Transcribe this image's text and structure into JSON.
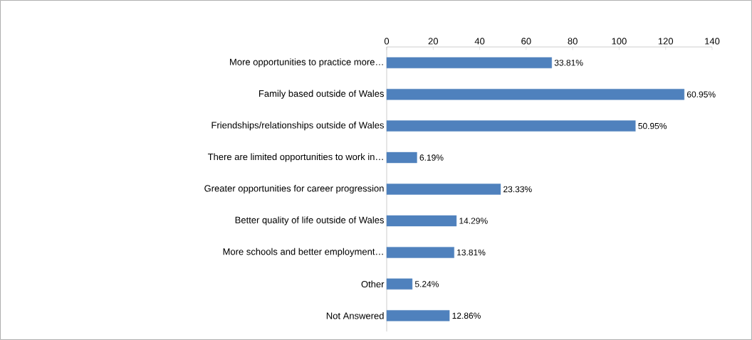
{
  "chart_data": {
    "type": "bar",
    "orientation": "horizontal",
    "categories": [
      "More opportunities to practice more…",
      "Family based outside of Wales",
      "Friendships/relationships outside of Wales",
      "There are limited opportunities to work in…",
      "Greater opportunities for career progression",
      "Better quality of life outside of Wales",
      "More schools and better employment…",
      "Other",
      "Not Answered"
    ],
    "values": [
      71,
      128,
      107,
      13,
      49,
      30,
      29,
      11,
      27
    ],
    "annotations": [
      "33.81%",
      "60.95%",
      "50.95%",
      "6.19%",
      "23.33%",
      "14.29%",
      "13.81%",
      "5.24%",
      "12.86%"
    ],
    "color": "#4f81bd",
    "xlim": [
      0,
      140
    ],
    "xticks": [
      0,
      20,
      40,
      60,
      80,
      100,
      120,
      140
    ],
    "grid": false
  }
}
